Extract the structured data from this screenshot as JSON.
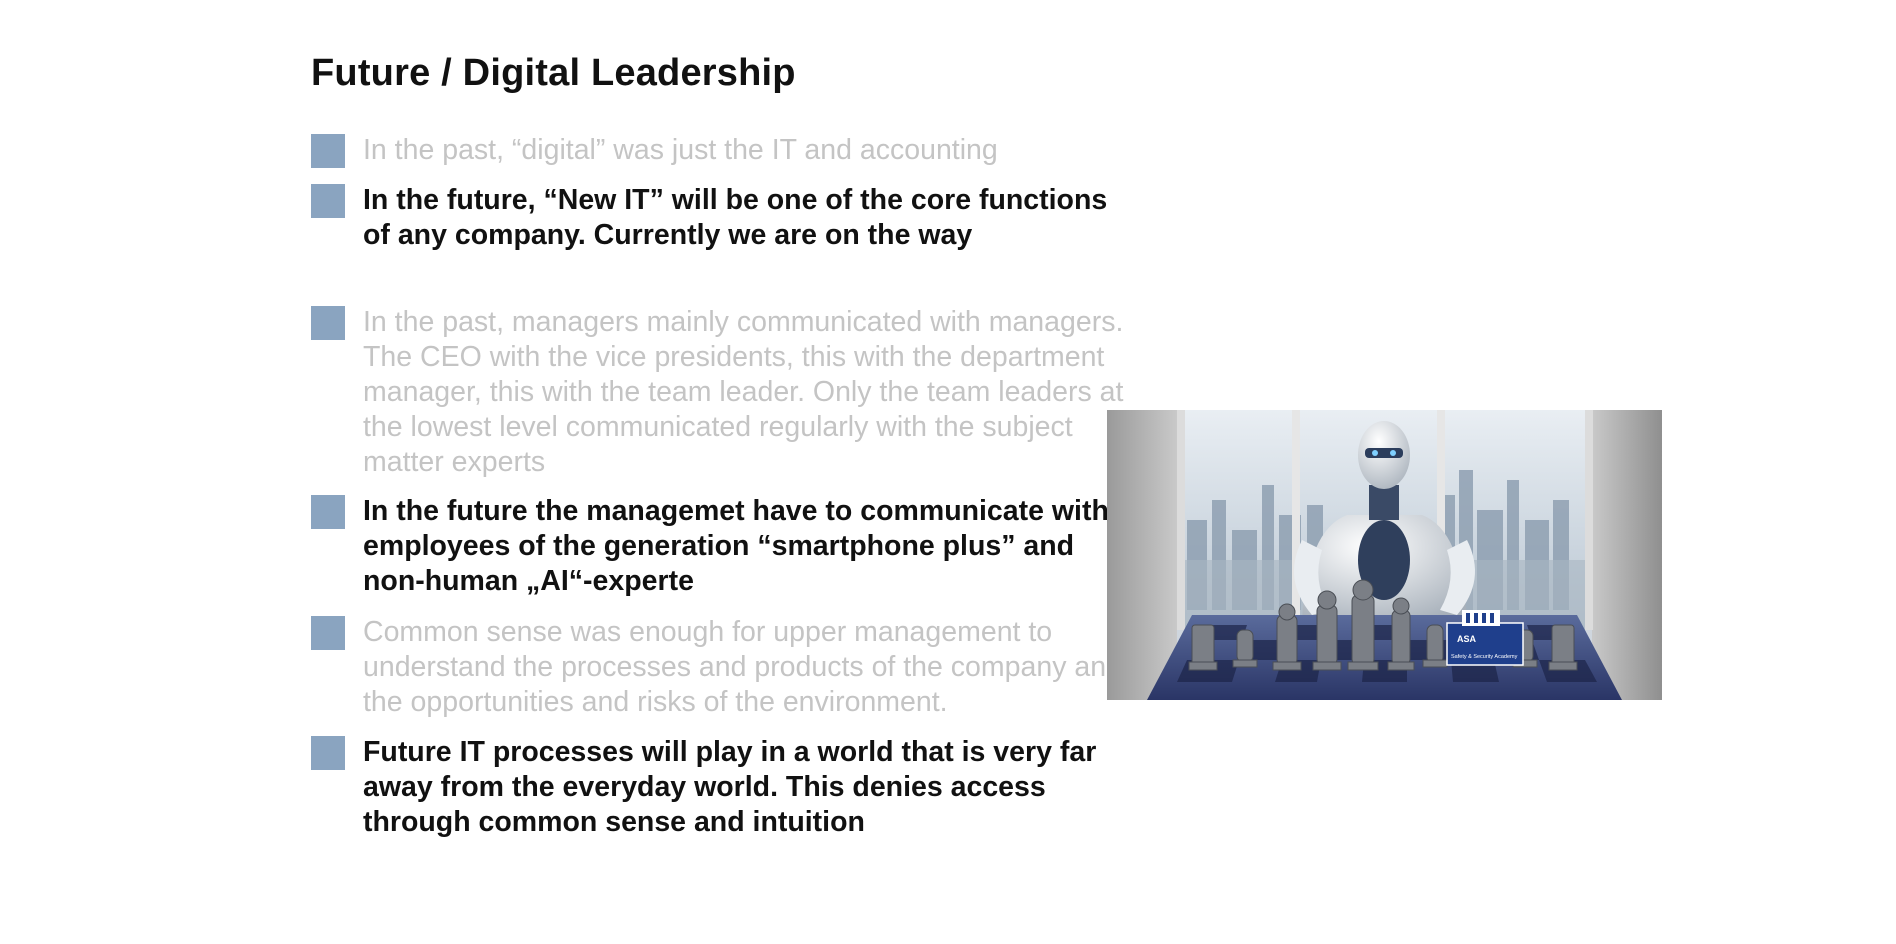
{
  "slide": {
    "title": "Future / Digital Leadership",
    "bullets": [
      {
        "text": "In the past, “digital” was just the IT and accounting",
        "emphasis": "dim"
      },
      {
        "text": "In the future, “New IT” will be one of the core functions of any company. Currently we are on the way",
        "emphasis": "bold"
      },
      {
        "text": "In the past, managers mainly communicated with managers. The CEO with the vice presidents, this with the department manager, this with the team leader. Only the team leaders at the lowest level communicated regularly with the subject matter experts",
        "emphasis": "dim"
      },
      {
        "text": "In the future the managemet have to communicate with employees of the generation “smartphone plus” and non-human „AI“-experte",
        "emphasis": "bold"
      },
      {
        "text": "Common sense was enough for upper management to understand the processes and products of the company and the opportunities and risks of the environment.",
        "emphasis": "dim"
      },
      {
        "text": "Future IT processes will play in a world that is very far away from the everyday world. This denies access through common sense and intuition",
        "emphasis": "bold"
      }
    ],
    "image": {
      "logo_name": "ASA",
      "logo_tagline": "Safety & Security Academy"
    }
  },
  "colors": {
    "bullet_marker": "#8aa4c0",
    "dim_text": "#c4c4c4",
    "bold_text": "#111111"
  }
}
